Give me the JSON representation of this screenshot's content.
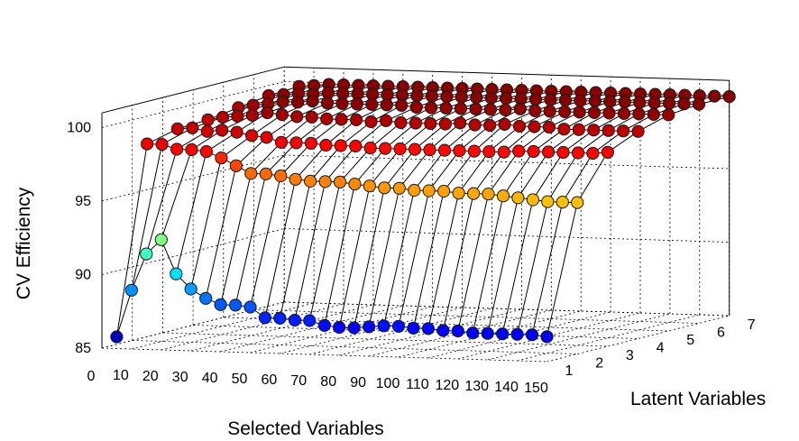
{
  "chart_data": {
    "type": "line3d",
    "xlabel": "Selected Variables",
    "ylabel": "Latent Variables",
    "zlabel": "CV Efficiency",
    "x_ticks": [
      0,
      10,
      20,
      30,
      40,
      50,
      60,
      70,
      80,
      90,
      100,
      110,
      120,
      130,
      140,
      150
    ],
    "y_ticks": [
      1,
      2,
      3,
      4,
      5,
      6,
      7
    ],
    "z_ticks": [
      85,
      90,
      95,
      100
    ],
    "xlim": [
      0,
      150
    ],
    "ylim": [
      1,
      7
    ],
    "zlim": [
      85,
      100
    ],
    "grid": true,
    "colormap": "jet",
    "x": [
      5,
      10,
      15,
      20,
      25,
      30,
      35,
      40,
      45,
      50,
      55,
      60,
      65,
      70,
      75,
      80,
      85,
      90,
      95,
      100,
      105,
      110,
      115,
      120,
      125,
      130,
      135,
      140,
      145,
      150
    ],
    "series": [
      {
        "latent": 1,
        "values": [
          85.8,
          89.0,
          91.5,
          92.5,
          90.2,
          89.2,
          88.6,
          88.2,
          88.2,
          88.1,
          87.4,
          87.4,
          87.3,
          87.3,
          87.0,
          86.9,
          86.9,
          87.0,
          87.1,
          87.1,
          87.0,
          87.0,
          86.9,
          86.9,
          86.8,
          86.8,
          86.8,
          86.8,
          86.8,
          86.7
        ]
      },
      {
        "latent": 2,
        "values": [
          98.4,
          98.4,
          98.1,
          98.1,
          98.0,
          97.6,
          97.1,
          96.6,
          96.6,
          96.5,
          96.3,
          96.2,
          96.2,
          96.2,
          96.1,
          96.0,
          95.9,
          95.9,
          95.8,
          95.8,
          95.8,
          95.7,
          95.7,
          95.7,
          95.6,
          95.5,
          95.4,
          95.3,
          95.3,
          95.3
        ]
      },
      {
        "latent": 3,
        "values": [
          98.9,
          99.0,
          98.8,
          98.9,
          98.8,
          98.6,
          98.5,
          98.2,
          98.2,
          98.2,
          98.1,
          98.1,
          98.1,
          98.0,
          98.0,
          98.0,
          98.0,
          98.0,
          98.0,
          98.0,
          98.0,
          98.0,
          98.0,
          98.1,
          98.1,
          98.1,
          98.1,
          98.1,
          98.1,
          98.2
        ]
      },
      {
        "latent": 4,
        "values": [
          99.0,
          99.2,
          99.3,
          99.4,
          99.6,
          99.5,
          99.4,
          99.4,
          99.3,
          99.3,
          99.3,
          99.2,
          99.3,
          99.2,
          99.2,
          99.2,
          99.2,
          99.3,
          99.2,
          99.2,
          99.3,
          99.2,
          99.2,
          99.2,
          99.1,
          99.1,
          99.1,
          99.1,
          99.1,
          99.1
        ]
      },
      {
        "latent": 5,
        "values": [
          99.3,
          99.5,
          99.6,
          99.8,
          99.8,
          99.9,
          99.8,
          99.8,
          99.8,
          99.8,
          99.8,
          99.8,
          99.7,
          99.7,
          99.7,
          99.7,
          99.7,
          99.7,
          99.7,
          99.8,
          99.7,
          99.7,
          99.7,
          99.7,
          99.7,
          99.7,
          99.7,
          99.7,
          99.7,
          99.7
        ]
      },
      {
        "latent": 6,
        "values": [
          99.6,
          99.7,
          99.8,
          99.8,
          99.9,
          99.9,
          99.9,
          99.9,
          99.9,
          99.9,
          99.9,
          99.9,
          99.9,
          99.9,
          99.9,
          99.9,
          99.9,
          99.9,
          99.9,
          99.9,
          99.9,
          99.9,
          99.9,
          99.9,
          99.9,
          99.9,
          99.9,
          99.9,
          99.9,
          99.9
        ]
      },
      {
        "latent": 7,
        "values": [
          99.7,
          99.8,
          99.9,
          99.9,
          99.9,
          99.9,
          99.9,
          99.9,
          99.9,
          99.9,
          99.9,
          99.9,
          99.9,
          99.9,
          99.9,
          99.9,
          99.9,
          99.9,
          99.9,
          99.9,
          99.9,
          99.9,
          99.9,
          99.9,
          99.9,
          99.9,
          99.9,
          99.9,
          99.9,
          99.9
        ]
      }
    ]
  }
}
